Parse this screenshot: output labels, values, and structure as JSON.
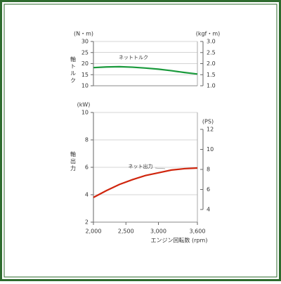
{
  "chart_data": [
    {
      "type": "line",
      "ylabel": "(N・m)",
      "y2label": "(kgf・m)",
      "side_label": "軸トルク",
      "x": [
        2000,
        2200,
        2400,
        2600,
        2800,
        3000,
        3200,
        3400,
        3600
      ],
      "xlim": [
        2000,
        3600
      ],
      "ylim": [
        10,
        30
      ],
      "yticks": [
        10,
        15,
        20,
        25,
        30
      ],
      "y2lim": [
        1.0,
        3.0
      ],
      "y2ticks": [
        {
          "value": 1.0,
          "label": "1.0"
        },
        1.5,
        {
          "value": 2.0,
          "label": "2.0"
        },
        2.5,
        {
          "value": 3.0,
          "label": "3.0"
        }
      ],
      "grid": true,
      "series": [
        {
          "name": "ネットトルク",
          "color": "#1a9a3c",
          "values": [
            18.2,
            18.5,
            18.6,
            18.4,
            18.0,
            17.5,
            16.8,
            16.0,
            15.3
          ]
        }
      ]
    },
    {
      "type": "line",
      "ylabel": "(kW)",
      "y2label": "(PS)",
      "side_label": "軸出力",
      "xlabel": "エンジン回転数 (rpm)",
      "x": [
        2000,
        2200,
        2400,
        2600,
        2800,
        3000,
        3200,
        3400,
        3600
      ],
      "xlim": [
        2000,
        3600
      ],
      "xticks": [
        {
          "value": 2000,
          "label": "2,000"
        },
        {
          "value": 2500,
          "label": "2,500"
        },
        {
          "value": 3000,
          "label": "3,000"
        },
        {
          "value": 3600,
          "label": "3,600"
        }
      ],
      "ylim": [
        2,
        10
      ],
      "yticks": [
        2,
        4,
        6,
        8,
        10
      ],
      "y2lim": [
        4,
        12
      ],
      "y2ticks": [
        4,
        6,
        8,
        10,
        12
      ],
      "grid": true,
      "series": [
        {
          "name": "ネット出力",
          "color": "#d0260e",
          "values": [
            3.8,
            4.3,
            4.75,
            5.1,
            5.4,
            5.6,
            5.8,
            5.9,
            5.95
          ]
        }
      ]
    }
  ]
}
